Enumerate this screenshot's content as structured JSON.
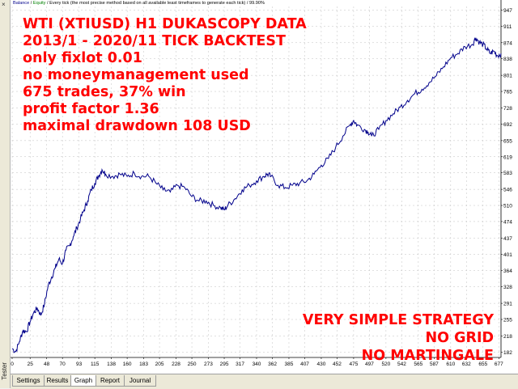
{
  "side_panel": {
    "label": "Tester",
    "close_symbol": "×"
  },
  "info_line": {
    "balance": "Balance",
    "separator1": " / ",
    "equity": "Equity",
    "rest": " / Every tick (the most precise method based on all available least timeframes to generate each tick) / 99.90%"
  },
  "overlay": {
    "top_lines": [
      "WTI (XTIUSD) H1 DUKASCOPY DATA",
      "2013/1 - 2020/11 TICK BACKTEST",
      "only fixlot 0.01",
      "no moneymanagement used",
      "675 trades, 37% win",
      "profit factor 1.36",
      "maximal drawdown 108 USD"
    ],
    "bottom_lines": [
      "VERY SIMPLE STRATEGY",
      "NO GRID",
      "NO MARTINGALE"
    ]
  },
  "tabs": [
    {
      "label": "Settings",
      "active": false
    },
    {
      "label": "Results",
      "active": false
    },
    {
      "label": "Graph",
      "active": true
    },
    {
      "label": "Report",
      "active": false
    },
    {
      "label": "Journal",
      "active": false
    }
  ],
  "colors": {
    "line": "#00008b",
    "grid": "#c0c0c0",
    "overlay_text": "#ff0000"
  },
  "chart_data": {
    "type": "line",
    "series": [
      {
        "name": "Balance",
        "points": [
          [
            0,
            190
          ],
          [
            5,
            183
          ],
          [
            10,
            205
          ],
          [
            15,
            230
          ],
          [
            20,
            228
          ],
          [
            25,
            250
          ],
          [
            30,
            270
          ],
          [
            35,
            280
          ],
          [
            40,
            265
          ],
          [
            45,
            290
          ],
          [
            50,
            330
          ],
          [
            55,
            350
          ],
          [
            60,
            370
          ],
          [
            65,
            390
          ],
          [
            70,
            380
          ],
          [
            75,
            410
          ],
          [
            80,
            420
          ],
          [
            85,
            440
          ],
          [
            90,
            460
          ],
          [
            95,
            480
          ],
          [
            100,
            500
          ],
          [
            105,
            520
          ],
          [
            110,
            545
          ],
          [
            115,
            560
          ],
          [
            120,
            575
          ],
          [
            125,
            590
          ],
          [
            130,
            580
          ],
          [
            140,
            575
          ],
          [
            150,
            580
          ],
          [
            160,
            575
          ],
          [
            170,
            582
          ],
          [
            180,
            575
          ],
          [
            190,
            575
          ],
          [
            200,
            560
          ],
          [
            210,
            545
          ],
          [
            220,
            540
          ],
          [
            230,
            555
          ],
          [
            240,
            550
          ],
          [
            250,
            530
          ],
          [
            260,
            520
          ],
          [
            270,
            520
          ],
          [
            280,
            510
          ],
          [
            290,
            505
          ],
          [
            295,
            500
          ],
          [
            300,
            510
          ],
          [
            310,
            525
          ],
          [
            320,
            545
          ],
          [
            330,
            555
          ],
          [
            340,
            565
          ],
          [
            350,
            575
          ],
          [
            355,
            580
          ],
          [
            360,
            575
          ],
          [
            370,
            555
          ],
          [
            380,
            550
          ],
          [
            390,
            555
          ],
          [
            400,
            560
          ],
          [
            410,
            565
          ],
          [
            420,
            580
          ],
          [
            430,
            600
          ],
          [
            440,
            615
          ],
          [
            450,
            640
          ],
          [
            460,
            665
          ],
          [
            470,
            690
          ],
          [
            475,
            700
          ],
          [
            480,
            690
          ],
          [
            490,
            680
          ],
          [
            495,
            675
          ],
          [
            500,
            665
          ],
          [
            510,
            680
          ],
          [
            520,
            700
          ],
          [
            530,
            715
          ],
          [
            540,
            730
          ],
          [
            550,
            745
          ],
          [
            560,
            760
          ],
          [
            570,
            770
          ],
          [
            580,
            785
          ],
          [
            590,
            800
          ],
          [
            600,
            820
          ],
          [
            610,
            840
          ],
          [
            620,
            850
          ],
          [
            630,
            865
          ],
          [
            640,
            870
          ],
          [
            645,
            885
          ],
          [
            650,
            875
          ],
          [
            655,
            870
          ],
          [
            660,
            860
          ],
          [
            665,
            850
          ],
          [
            670,
            855
          ],
          [
            675,
            845
          ],
          [
            680,
            850
          ]
        ]
      }
    ],
    "x_ticks": [
      0,
      25,
      48,
      70,
      93,
      115,
      138,
      160,
      183,
      205,
      228,
      250,
      273,
      295,
      317,
      340,
      362,
      385,
      407,
      430,
      452,
      475,
      497,
      520,
      542,
      565,
      587,
      610,
      632,
      655,
      677
    ],
    "y_ticks": [
      182,
      218,
      255,
      291,
      328,
      364,
      401,
      437,
      474,
      510,
      546,
      583,
      619,
      655,
      692,
      728,
      765,
      801,
      838,
      874,
      911,
      947
    ],
    "xlim": [
      0,
      680
    ],
    "ylim": [
      170,
      955
    ],
    "grid": true
  }
}
